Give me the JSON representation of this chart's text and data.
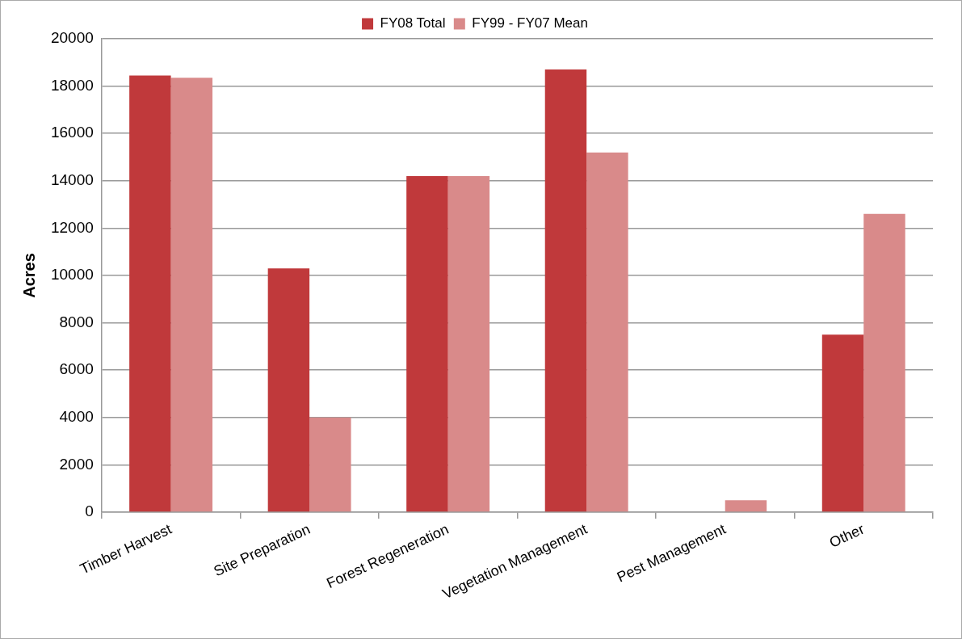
{
  "chart_data": {
    "type": "bar",
    "ylabel": "Acres",
    "categories": [
      "Timber Harvest",
      "Site Preparation",
      "Forest Regeneration",
      "Vegetation Management",
      "Pest Management",
      "Other"
    ],
    "series": [
      {
        "name": "FY08 Total",
        "color": "#c0393b",
        "values": [
          18450,
          10300,
          14200,
          18700,
          0,
          7500
        ]
      },
      {
        "name": "FY99 - FY07 Mean",
        "color": "#d98a8a",
        "values": [
          18350,
          4000,
          14200,
          15200,
          500,
          12600
        ]
      }
    ],
    "ylim": [
      0,
      20000
    ],
    "yticks": [
      0,
      2000,
      4000,
      6000,
      8000,
      10000,
      12000,
      14000,
      16000,
      18000,
      20000
    ],
    "grid": "y",
    "legend": "top"
  }
}
